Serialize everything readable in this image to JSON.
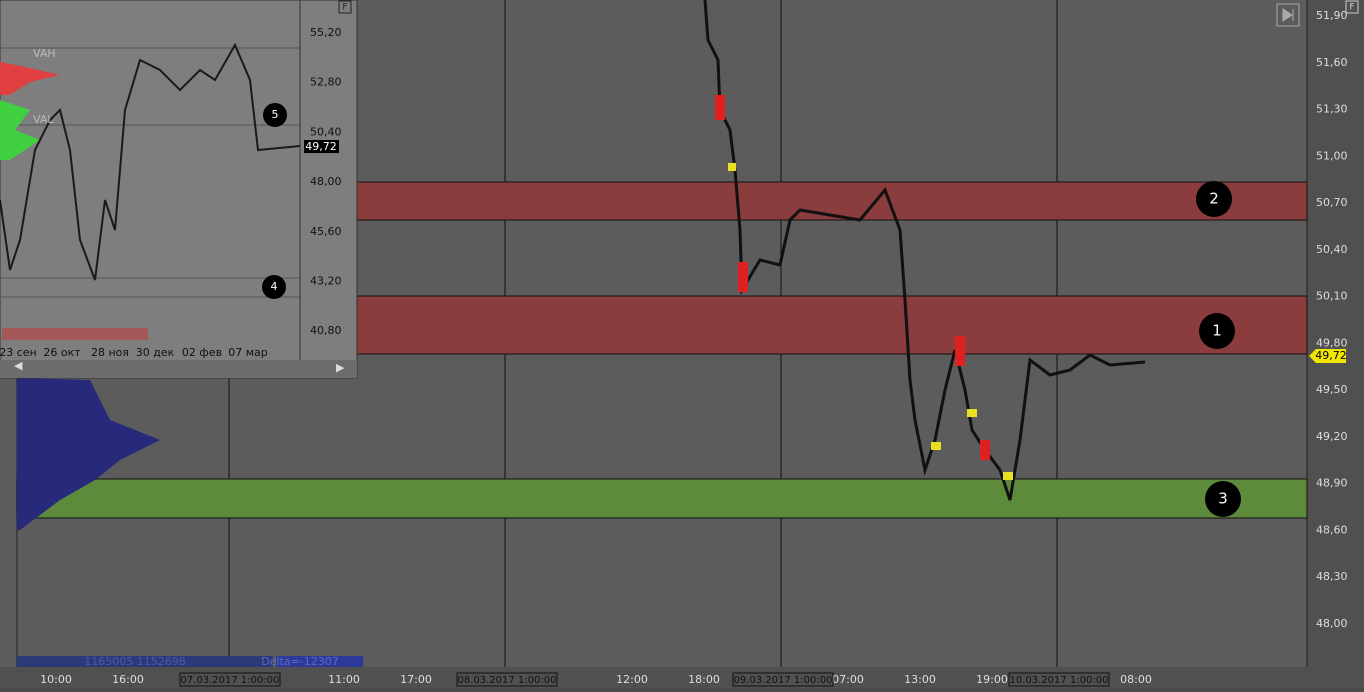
{
  "main": {
    "y_axis_labels": [
      "51,90",
      "51,60",
      "51,30",
      "51,00",
      "50,70",
      "50,40",
      "50,10",
      "49,80",
      "49,50",
      "49,20",
      "48,90",
      "48,60",
      "48,30",
      "48,00"
    ],
    "price_tag": "49,72",
    "zone_markers": [
      "2",
      "1",
      "3"
    ],
    "time_labels": [
      "10:00",
      "16:00",
      "11:00",
      "17:00",
      "12:00",
      "18:00",
      "07:00",
      "13:00",
      "19:00",
      "08:00"
    ],
    "date_labels": [
      "07.03.2017 1:00:00",
      "08.03.2017 1:00:00",
      "09.03.2017 1:00:00",
      "10.03.2017 1:00:00"
    ],
    "volume_text": "1165005 1152698",
    "delta_text": "Delta=-12307",
    "corner_button": "F"
  },
  "inset": {
    "y_axis_labels": [
      "55,20",
      "52,80",
      "50,40",
      "48,00",
      "45,60",
      "43,20",
      "40,80"
    ],
    "price_tag": "49,72",
    "level_labels": [
      "VAH",
      "VAL"
    ],
    "markers": [
      "5",
      "4"
    ],
    "date_labels": [
      "23 сен",
      "26 окт",
      "28 ноя",
      "30 дек",
      "02 фев",
      "07 мар"
    ],
    "corner_button": "F"
  }
}
